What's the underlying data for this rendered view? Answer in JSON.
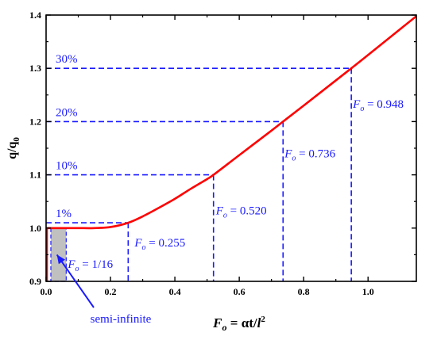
{
  "chart_data": {
    "type": "line",
    "xlabel": {
      "base": "F",
      "base_sub": "o",
      "rest": " = αt/",
      "l": "l",
      "sup": "2"
    },
    "ylabel": {
      "base": "q/q",
      "sub": "0"
    },
    "xlim": [
      0,
      1.15
    ],
    "ylim": [
      0.9,
      1.4
    ],
    "xticks": [
      0.0,
      0.2,
      0.4,
      0.6,
      0.8,
      1.0
    ],
    "xtick_labels": [
      "0.0",
      "0.2",
      "0.4",
      "0.6",
      "0.8",
      "1.0"
    ],
    "yticks": [
      0.9,
      1.0,
      1.1,
      1.2,
      1.3,
      1.4
    ],
    "ytick_labels": [
      "0.9",
      "1.0",
      "1.1",
      "1.2",
      "1.3",
      "1.4"
    ],
    "series": [
      {
        "color": "#ff0000",
        "x": [
          0.0,
          0.02,
          0.05,
          0.1,
          0.15,
          0.2,
          0.255,
          0.3,
          0.35,
          0.4,
          0.45,
          0.5,
          0.52,
          0.6,
          0.7,
          0.736,
          0.8,
          0.948,
          1.0,
          1.15
        ],
        "y": [
          1.0,
          1.0,
          1.0,
          1.0,
          1.0,
          1.002,
          1.01,
          1.022,
          1.038,
          1.055,
          1.074,
          1.092,
          1.1,
          1.137,
          1.183,
          1.2,
          1.23,
          1.3,
          1.325,
          1.398
        ]
      }
    ],
    "thresholds": [
      {
        "percent_label": "1%",
        "fo_label": "F",
        "fo_sub": "o",
        "fo_value": " = 0.255",
        "x": 0.255,
        "y": 1.01
      },
      {
        "percent_label": "10%",
        "fo_label": "F",
        "fo_sub": "o",
        "fo_value": " = 0.520",
        "x": 0.52,
        "y": 1.1
      },
      {
        "percent_label": "20%",
        "fo_label": "F",
        "fo_sub": "o",
        "fo_value": " = 0.736",
        "x": 0.736,
        "y": 1.2
      },
      {
        "percent_label": "30%",
        "fo_label": "F",
        "fo_sub": "o",
        "fo_value": " = 0.948",
        "x": 0.948,
        "y": 1.3
      }
    ],
    "semi_infinite": {
      "x_range": [
        0.0,
        0.0625
      ],
      "fo_label": "F",
      "fo_sub": "o",
      "fo_value": " = 1/16",
      "arrow_label": "semi-infinite",
      "shade_color": "#c0c0c0"
    },
    "guide_color": "#1a1aff",
    "grid": false
  }
}
